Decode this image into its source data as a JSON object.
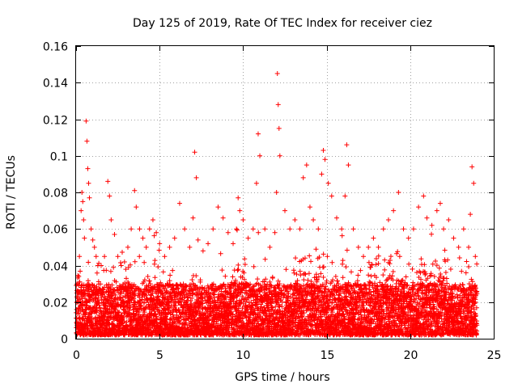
{
  "chart_data": {
    "type": "scatter",
    "title": "Day 125 of 2019, Rate Of TEC Index for receiver ciez",
    "xlabel": "GPS time / hours",
    "ylabel": "ROTI / TECUs",
    "xlim": [
      0,
      25
    ],
    "ylim": [
      0,
      0.16
    ],
    "xticks": [
      0,
      5,
      10,
      15,
      20,
      25
    ],
    "xtick_labels": [
      "0",
      "5",
      "10",
      "15",
      "20",
      "25"
    ],
    "yticks": [
      0,
      0.02,
      0.04,
      0.06,
      0.08,
      0.1,
      0.12,
      0.14,
      0.16
    ],
    "ytick_labels": [
      "0",
      "0.02",
      "0.04",
      "0.06",
      "0.08",
      "0.1",
      "0.12",
      "0.14",
      "0.16"
    ],
    "grid": true,
    "marker": "+",
    "series": [
      {
        "name": "ROTI",
        "color": "#ff0000",
        "x": [
          0.05,
          0.1,
          0.2,
          0.3,
          0.35,
          0.4,
          0.45,
          0.5,
          0.6,
          0.65,
          0.7,
          0.75,
          0.8,
          0.9,
          1.0,
          1.1,
          1.2,
          1.3,
          1.5,
          1.7,
          1.9,
          2.0,
          2.1,
          2.3,
          2.5,
          2.7,
          2.9,
          3.1,
          3.3,
          3.5,
          3.6,
          3.8,
          4.0,
          4.2,
          4.4,
          4.6,
          4.8,
          5.0,
          5.3,
          5.6,
          5.9,
          6.2,
          6.5,
          6.8,
          7.0,
          7.1,
          7.2,
          7.3,
          7.6,
          7.9,
          8.2,
          8.5,
          8.8,
          9.1,
          9.4,
          9.6,
          9.7,
          9.8,
          10.0,
          10.3,
          10.6,
          10.8,
          10.9,
          11.0,
          11.3,
          11.6,
          11.9,
          12.0,
          12.05,
          12.1,
          12.15,
          12.2,
          12.5,
          12.8,
          13.1,
          13.4,
          13.6,
          13.8,
          14.0,
          14.2,
          14.5,
          14.7,
          14.8,
          14.9,
          15.1,
          15.3,
          15.6,
          15.9,
          16.1,
          16.2,
          16.3,
          16.6,
          16.9,
          17.2,
          17.5,
          17.8,
          18.1,
          18.4,
          18.7,
          19.0,
          19.3,
          19.6,
          19.9,
          20.2,
          20.5,
          20.8,
          21.0,
          21.3,
          21.6,
          21.8,
          22.0,
          22.3,
          22.6,
          22.9,
          23.2,
          23.5,
          23.6,
          23.7,
          23.8,
          23.9
        ],
        "y": [
          0.025,
          0.03,
          0.045,
          0.07,
          0.08,
          0.075,
          0.065,
          0.055,
          0.119,
          0.108,
          0.093,
          0.085,
          0.077,
          0.06,
          0.054,
          0.05,
          0.045,
          0.04,
          0.04,
          0.045,
          0.086,
          0.078,
          0.065,
          0.057,
          0.045,
          0.04,
          0.042,
          0.05,
          0.06,
          0.081,
          0.072,
          0.06,
          0.055,
          0.05,
          0.06,
          0.065,
          0.058,
          0.052,
          0.045,
          0.05,
          0.055,
          0.074,
          0.06,
          0.05,
          0.066,
          0.102,
          0.088,
          0.054,
          0.048,
          0.052,
          0.06,
          0.072,
          0.066,
          0.058,
          0.052,
          0.06,
          0.077,
          0.07,
          0.065,
          0.055,
          0.06,
          0.085,
          0.112,
          0.1,
          0.06,
          0.05,
          0.058,
          0.08,
          0.145,
          0.128,
          0.115,
          0.1,
          0.07,
          0.06,
          0.065,
          0.06,
          0.088,
          0.095,
          0.072,
          0.065,
          0.06,
          0.09,
          0.103,
          0.098,
          0.085,
          0.078,
          0.066,
          0.06,
          0.078,
          0.106,
          0.095,
          0.06,
          0.05,
          0.045,
          0.05,
          0.055,
          0.05,
          0.06,
          0.065,
          0.07,
          0.08,
          0.06,
          0.055,
          0.06,
          0.072,
          0.078,
          0.066,
          0.062,
          0.07,
          0.074,
          0.06,
          0.065,
          0.055,
          0.05,
          0.06,
          0.05,
          0.068,
          0.094,
          0.085,
          0.045
        ],
        "baseline_band": {
          "description": "dense continuous band of points between 0 and ~0.03 spanning 0-24 hours with frequent spikes to 0.04-0.06",
          "typical_min": 0.002,
          "typical_max": 0.03
        }
      }
    ]
  }
}
